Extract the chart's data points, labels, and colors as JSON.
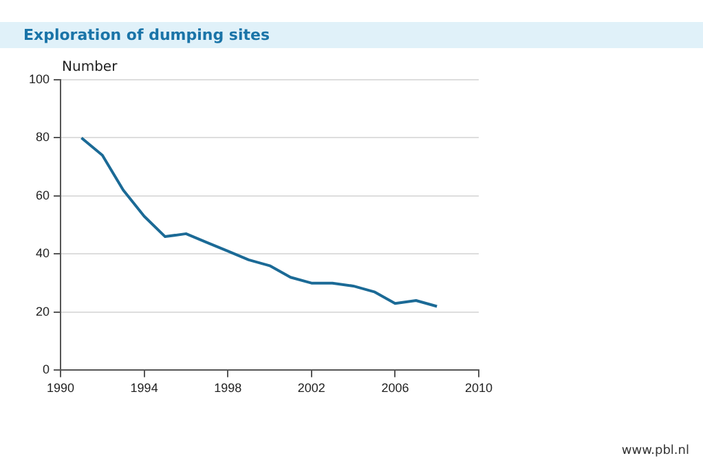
{
  "chart_data": {
    "type": "line",
    "title": "Exploration of dumping sites",
    "ylabel": "Number",
    "x": [
      1991,
      1992,
      1993,
      1994,
      1995,
      1996,
      1997,
      1998,
      1999,
      2000,
      2001,
      2002,
      2003,
      2004,
      2005,
      2006,
      2007,
      2008
    ],
    "series": [
      {
        "color": "#1b6a96",
        "values": [
          80,
          74,
          62,
          53,
          46,
          47,
          44,
          41,
          38,
          36,
          32,
          30,
          30,
          29,
          27,
          23,
          24,
          22
        ]
      }
    ],
    "xlim": [
      1990,
      2010
    ],
    "xticks": [
      1990,
      1994,
      1998,
      2002,
      2006,
      2010
    ],
    "ylim": [
      0,
      100
    ],
    "yticks": [
      0,
      20,
      40,
      60,
      80,
      100
    ],
    "grid": "y",
    "legend": false,
    "marker": "none",
    "line_style": "solid",
    "annotations": [
      "www.pbl.nl"
    ]
  }
}
